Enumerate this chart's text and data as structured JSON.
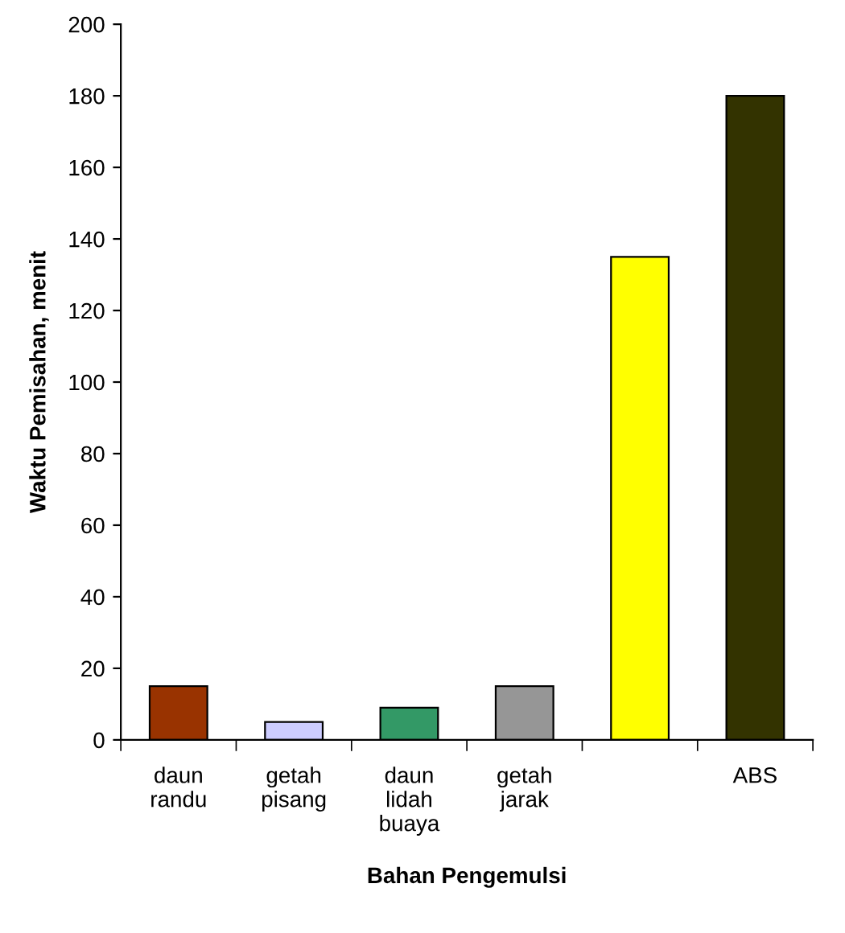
{
  "chart_data": {
    "type": "bar",
    "xlabel": "Bahan Pengemulsi",
    "ylabel": "Waktu Pemisahan, menit",
    "categories": [
      "daun\nrandu",
      "getah\npisang",
      "daun\nlidah\nbuaya",
      "getah\njarak",
      null,
      "ABS"
    ],
    "values": [
      15,
      5,
      9,
      15,
      135,
      180
    ],
    "colors": [
      "#993300",
      "#ccccff",
      "#339966",
      "#969696",
      "#ffff00",
      "#333300"
    ],
    "ylim": [
      0,
      200
    ],
    "yticks": [
      0,
      20,
      40,
      60,
      80,
      100,
      120,
      140,
      160,
      180,
      200
    ],
    "grid": false,
    "legend": false
  }
}
